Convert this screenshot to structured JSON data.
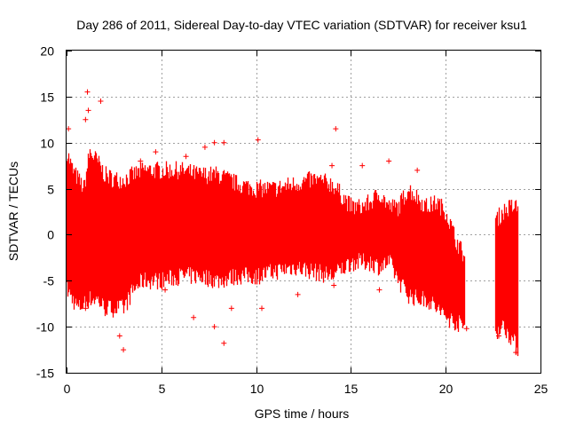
{
  "chart_data": {
    "type": "scatter",
    "title": "Day 286 of 2011, Sidereal Day-to-day VTEC variation (SDTVAR) for receiver ksu1",
    "xlabel": "GPS time / hours",
    "ylabel": "SDTVAR / TECUs",
    "xlim": [
      0,
      25
    ],
    "ylim": [
      -15,
      20
    ],
    "xticks": [
      0,
      5,
      10,
      15,
      20,
      25
    ],
    "yticks": [
      -15,
      -10,
      -5,
      0,
      5,
      10,
      15,
      20
    ],
    "grid": true,
    "marker": "+",
    "color": "#ff0000",
    "envelope": {
      "x": [
        0.0,
        0.3,
        0.6,
        0.9,
        1.2,
        1.6,
        2.0,
        2.5,
        3.0,
        3.5,
        4.0,
        5.0,
        6.0,
        7.0,
        8.0,
        9.0,
        10.0,
        11.0,
        12.0,
        13.0,
        14.0,
        15.0,
        15.5,
        16.0,
        16.5,
        17.0,
        17.5,
        18.0,
        18.5,
        19.0,
        19.5,
        20.0,
        20.5,
        21.0
      ],
      "upper": [
        9.0,
        7.0,
        6.0,
        5.0,
        9.0,
        8.0,
        6.5,
        6.0,
        6.0,
        6.5,
        7.0,
        7.0,
        7.0,
        6.5,
        6.5,
        5.5,
        5.0,
        5.0,
        5.5,
        6.0,
        5.5,
        3.0,
        3.0,
        3.5,
        4.5,
        3.0,
        3.0,
        5.0,
        4.0,
        3.0,
        3.5,
        2.5,
        -0.5,
        -2.5
      ],
      "lower": [
        -6.0,
        -7.0,
        -8.0,
        -7.5,
        -7.0,
        -7.0,
        -8.0,
        -8.0,
        -8.0,
        -6.0,
        -5.0,
        -5.0,
        -4.5,
        -4.5,
        -5.0,
        -4.5,
        -4.5,
        -4.0,
        -3.5,
        -4.0,
        -4.5,
        -3.0,
        -3.0,
        -3.0,
        -3.5,
        -3.0,
        -5.0,
        -6.5,
        -7.0,
        -7.0,
        -8.0,
        -9.0,
        -9.5,
        -10.0
      ]
    },
    "late_segment": {
      "x": [
        22.6,
        23.0,
        23.4,
        23.8
      ],
      "upper": [
        1.5,
        2.5,
        3.0,
        3.0
      ],
      "lower": [
        -10.5,
        -10.0,
        -11.0,
        -12.5
      ]
    },
    "outliers": [
      {
        "x": 1.1,
        "y": 15.5
      },
      {
        "x": 1.15,
        "y": 13.5
      },
      {
        "x": 1.0,
        "y": 12.5
      },
      {
        "x": 1.8,
        "y": 14.5
      },
      {
        "x": 0.1,
        "y": 11.5
      },
      {
        "x": 4.7,
        "y": 9.0
      },
      {
        "x": 3.9,
        "y": 8.0
      },
      {
        "x": 6.3,
        "y": 8.5
      },
      {
        "x": 7.3,
        "y": 9.5
      },
      {
        "x": 7.8,
        "y": 10.0
      },
      {
        "x": 8.3,
        "y": 10.0
      },
      {
        "x": 10.1,
        "y": 10.3
      },
      {
        "x": 14.2,
        "y": 11.5
      },
      {
        "x": 14.0,
        "y": 7.5
      },
      {
        "x": 15.6,
        "y": 7.5
      },
      {
        "x": 17.0,
        "y": 8.0
      },
      {
        "x": 18.5,
        "y": 7.0
      },
      {
        "x": 3.0,
        "y": -12.5
      },
      {
        "x": 8.3,
        "y": -11.8
      },
      {
        "x": 7.8,
        "y": -10.0
      },
      {
        "x": 2.8,
        "y": -11.0
      },
      {
        "x": 1.0,
        "y": -8.0
      },
      {
        "x": 6.7,
        "y": -9.0
      },
      {
        "x": 8.7,
        "y": -8.0
      },
      {
        "x": 10.3,
        "y": -8.0
      },
      {
        "x": 12.2,
        "y": -6.5
      },
      {
        "x": 14.1,
        "y": -5.5
      },
      {
        "x": 16.5,
        "y": -6.0
      },
      {
        "x": 22.8,
        "y": -11.0
      },
      {
        "x": 23.7,
        "y": -12.8
      },
      {
        "x": 21.1,
        "y": -10.2
      },
      {
        "x": 5.2,
        "y": -6.0
      }
    ]
  }
}
